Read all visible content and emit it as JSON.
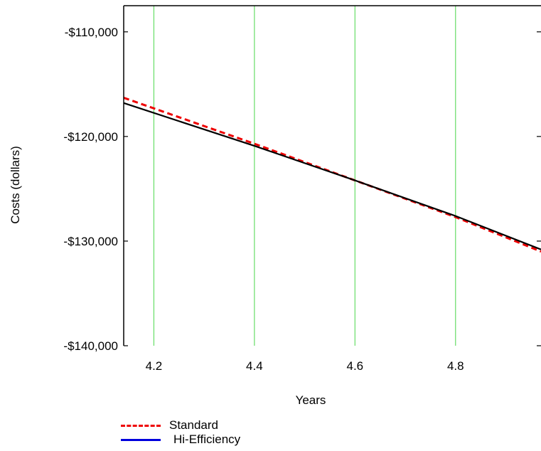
{
  "chart_data": {
    "type": "line",
    "title": "",
    "xlabel": "Years",
    "ylabel": "Costs (dollars)",
    "xlim": [
      4.14,
      4.97
    ],
    "ylim": [
      -140000,
      -107500
    ],
    "x_ticks": [
      {
        "value": 4.2,
        "label": "4.2"
      },
      {
        "value": 4.4,
        "label": "4.4"
      },
      {
        "value": 4.6,
        "label": "4.6"
      },
      {
        "value": 4.8,
        "label": "4.8"
      }
    ],
    "y_ticks": [
      {
        "value": -110000,
        "label": "-$110,000"
      },
      {
        "value": -120000,
        "label": "-$120,000"
      },
      {
        "value": -130000,
        "label": "-$130,000"
      },
      {
        "value": -140000,
        "label": "-$140,000"
      }
    ],
    "grid": {
      "vertical": true,
      "horizontal": false,
      "color": "#66dd66"
    },
    "legend_position": "bottom-left",
    "series": [
      {
        "name": "Standard",
        "color": "#ee0000",
        "style": "dashed",
        "x": [
          4.14,
          4.4,
          4.6,
          4.8,
          4.97
        ],
        "y": [
          -116300,
          -120700,
          -124200,
          -127700,
          -131000
        ]
      },
      {
        "name": "Hi-Efficiency",
        "color": "#000000",
        "style": "solid",
        "legend_color": "#0000dd",
        "x": [
          4.14,
          4.4,
          4.6,
          4.8,
          4.97
        ],
        "y": [
          -116800,
          -120900,
          -124200,
          -127600,
          -130800
        ]
      }
    ]
  }
}
